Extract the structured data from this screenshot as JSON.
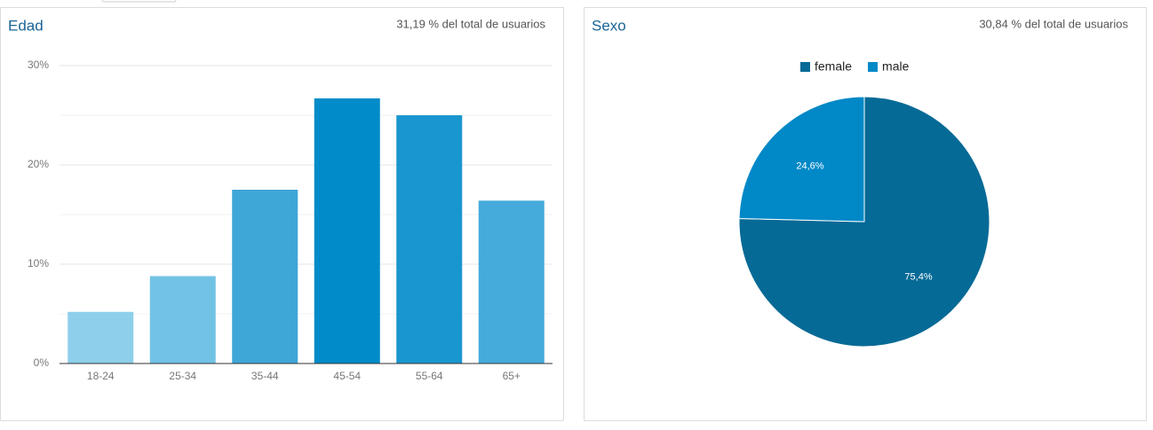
{
  "chart_data": [
    {
      "type": "bar",
      "title": "Edad",
      "subtitle": "31,19 % del total de usuarios",
      "categories": [
        "18-24",
        "25-34",
        "35-44",
        "45-54",
        "55-64",
        "65+"
      ],
      "values": [
        5.2,
        8.8,
        17.5,
        26.7,
        25.0,
        16.4
      ],
      "colors": [
        "#8ecfeb",
        "#72c2e6",
        "#3fa6d8",
        "#018bc8",
        "#1a96cf",
        "#45abdb"
      ],
      "ylim": [
        0,
        30
      ],
      "yticks": [
        {
          "value": 0,
          "label": "0%"
        },
        {
          "value": 10,
          "label": "10%"
        },
        {
          "value": 20,
          "label": "20%"
        },
        {
          "value": 30,
          "label": "30%"
        }
      ],
      "minor_yticks": [
        5,
        15,
        25
      ],
      "grid": true
    },
    {
      "type": "pie",
      "title": "Sexo",
      "subtitle": "30,84 % del total de usuarios",
      "categories": [
        "female",
        "male"
      ],
      "values": [
        75.4,
        24.6
      ],
      "value_labels": [
        "75,4%",
        "24,6%"
      ],
      "colors": [
        "#066a96",
        "#0088c7"
      ],
      "legend": "top"
    }
  ]
}
